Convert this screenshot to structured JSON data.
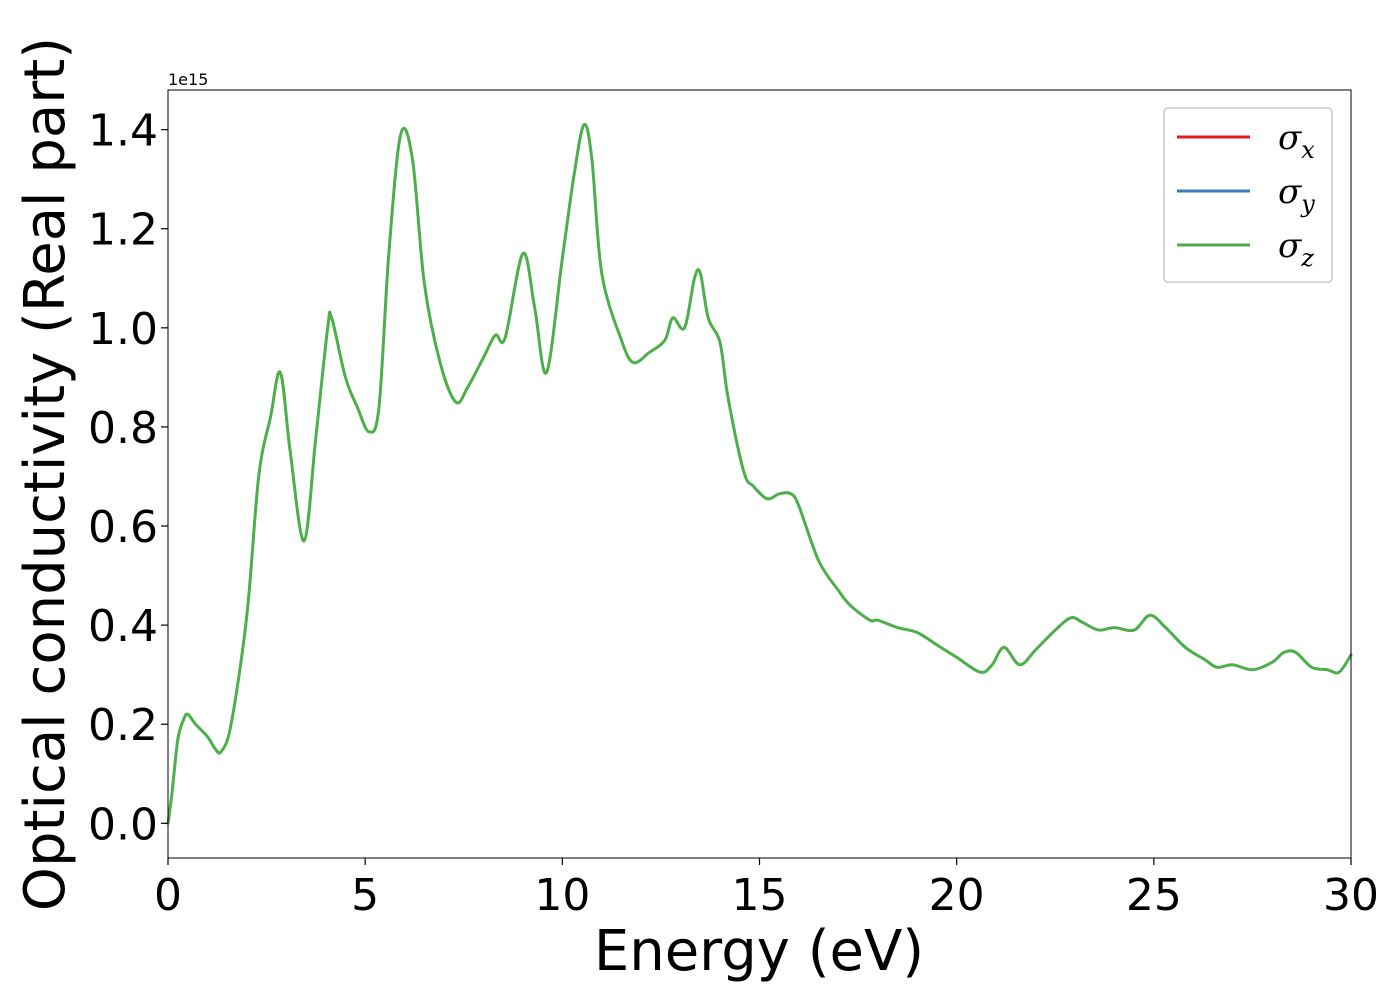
{
  "chart_data": {
    "type": "line",
    "title": "",
    "xlabel": "Energy (eV)",
    "ylabel": "Optical conductivity (Real part)",
    "y_offset_label": "1e15",
    "xlim": [
      0,
      30
    ],
    "ylim": [
      -0.07,
      1.48
    ],
    "x_ticks": [
      0,
      5,
      10,
      15,
      20,
      25,
      30
    ],
    "x_tick_labels": [
      "0",
      "5",
      "10",
      "15",
      "20",
      "25",
      "30"
    ],
    "y_ticks": [
      0.0,
      0.2,
      0.4,
      0.6,
      0.8,
      1.0,
      1.2,
      1.4
    ],
    "y_tick_labels": [
      "0.0",
      "0.2",
      "0.4",
      "0.6",
      "0.8",
      "1.0",
      "1.2",
      "1.4"
    ],
    "grid": false,
    "legend_position": "top-right",
    "legend": [
      {
        "sym": "σ",
        "sub": "x",
        "color": "#e41a1c"
      },
      {
        "sym": "σ",
        "sub": "y",
        "color": "#377eb8"
      },
      {
        "sym": "σ",
        "sub": "z",
        "color": "#4daf4a"
      }
    ],
    "x": [
      0,
      0.1,
      0.25,
      0.4,
      0.5,
      0.7,
      1.0,
      1.2,
      1.35,
      1.6,
      2.0,
      2.3,
      2.6,
      2.85,
      3.1,
      3.45,
      3.75,
      4.05,
      4.15,
      4.5,
      4.8,
      5.1,
      5.35,
      5.6,
      5.9,
      6.2,
      6.5,
      6.9,
      7.3,
      7.6,
      8.0,
      8.3,
      8.55,
      9.0,
      9.3,
      9.6,
      10.0,
      10.3,
      10.55,
      10.75,
      11.0,
      11.5,
      11.8,
      12.2,
      12.6,
      12.8,
      13.1,
      13.35,
      13.5,
      13.7,
      14.0,
      14.2,
      14.6,
      14.85,
      15.2,
      15.5,
      15.8,
      16.0,
      16.5,
      17.0,
      17.3,
      17.8,
      18.0,
      18.5,
      19.0,
      19.5,
      20.0,
      20.6,
      20.9,
      21.2,
      21.6,
      22.0,
      22.5,
      22.9,
      23.2,
      23.6,
      24.0,
      24.5,
      24.9,
      25.3,
      25.8,
      26.3,
      26.6,
      27.0,
      27.5,
      28.0,
      28.3,
      28.6,
      29.0,
      29.4,
      29.7,
      30.0
    ],
    "series": [
      {
        "color": "#4daf4a",
        "y": [
          0.0,
          0.06,
          0.17,
          0.21,
          0.22,
          0.2,
          0.175,
          0.15,
          0.145,
          0.2,
          0.42,
          0.7,
          0.82,
          0.91,
          0.75,
          0.57,
          0.78,
          1.0,
          1.02,
          0.9,
          0.84,
          0.79,
          0.84,
          1.15,
          1.39,
          1.34,
          1.09,
          0.93,
          0.85,
          0.88,
          0.94,
          0.985,
          0.98,
          1.15,
          1.04,
          0.91,
          1.14,
          1.31,
          1.41,
          1.34,
          1.11,
          0.975,
          0.93,
          0.95,
          0.975,
          1.02,
          1.0,
          1.1,
          1.11,
          1.02,
          0.97,
          0.86,
          0.71,
          0.68,
          0.655,
          0.665,
          0.665,
          0.64,
          0.53,
          0.47,
          0.44,
          0.41,
          0.41,
          0.395,
          0.385,
          0.36,
          0.335,
          0.305,
          0.32,
          0.355,
          0.32,
          0.35,
          0.39,
          0.415,
          0.405,
          0.39,
          0.395,
          0.39,
          0.42,
          0.395,
          0.355,
          0.33,
          0.315,
          0.32,
          0.31,
          0.325,
          0.345,
          0.345,
          0.315,
          0.31,
          0.305,
          0.34
        ]
      }
    ]
  }
}
